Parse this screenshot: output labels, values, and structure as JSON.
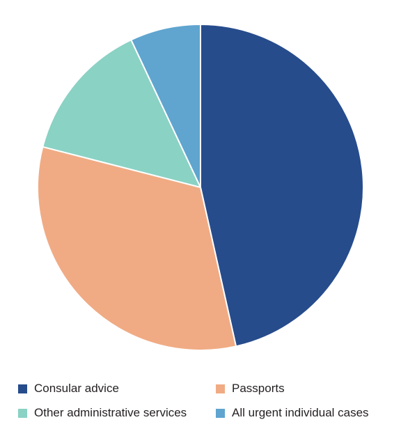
{
  "chart_data": {
    "type": "pie",
    "title": "",
    "categories": [
      "Consular advice",
      "Passports",
      "Other administrative services",
      "All urgent individual cases"
    ],
    "values": [
      46.5,
      32.5,
      14.0,
      7.0
    ],
    "colors": [
      "#264c8c",
      "#f0ab84",
      "#8ad2c4",
      "#5fa5cf"
    ],
    "legend": {
      "placement": "bottom",
      "items": [
        {
          "label": "Consular advice",
          "color": "#264c8c"
        },
        {
          "label": "Passports",
          "color": "#f0ab84"
        },
        {
          "label": "Other administrative services",
          "color": "#8ad2c4"
        },
        {
          "label": "All urgent individual cases",
          "color": "#5fa5cf"
        }
      ]
    }
  }
}
